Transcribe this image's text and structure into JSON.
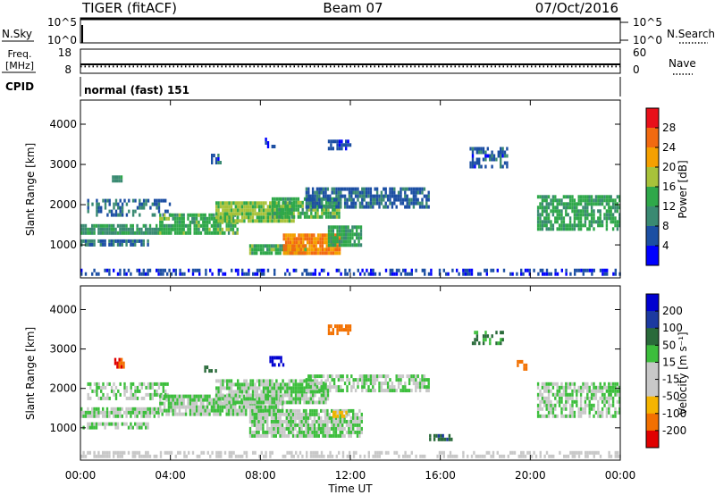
{
  "header": {
    "radar": "TIGER (fitACF)",
    "beam": "Beam 07",
    "date": "07/Oct/2016"
  },
  "status_panel": {
    "nsky_label": "N.Sky",
    "nsearch_label": "N.Search",
    "left_ticks": [
      "10^5",
      "10^0"
    ],
    "right_ticks": [
      "10^5",
      "10^0"
    ]
  },
  "freq_panel": {
    "label_line1": "Freq.",
    "label_line2": "[MHz]",
    "left_ticks": [
      "18",
      "8"
    ],
    "right_ticks": [
      "60",
      "0"
    ],
    "nave_label": "Nave",
    "freq_value_mhz": 11.5,
    "nave_value": 14
  },
  "cpid": {
    "label": "CPID",
    "value": "normal (fast) 151"
  },
  "time_axis": {
    "label": "Time UT",
    "ticks": [
      "00:00",
      "04:00",
      "08:00",
      "12:00",
      "16:00",
      "20:00",
      "00:00"
    ]
  },
  "colors": {
    "power": [
      "#0000ff",
      "#1c4fa3",
      "#3a8a72",
      "#2fa84a",
      "#a8c23a",
      "#f5a000",
      "#f26a10",
      "#e8101a"
    ],
    "velocity": [
      "#e00000",
      "#f27000",
      "#f5b400",
      "#c8c8c8",
      "#c8c8c8",
      "#3cbe3c",
      "#2a6a3a",
      "#1c3aa0",
      "#0000d0"
    ]
  },
  "chart_data": [
    {
      "type": "heatmap",
      "name": "power",
      "xlabel": "Time UT",
      "ylabel": "Slant Range [km]",
      "xlim": [
        0,
        24
      ],
      "ylim": [
        180,
        4600
      ],
      "y_ticks": [
        "1000",
        "2000",
        "3000",
        "4000"
      ],
      "colorbar": {
        "label": "Power [dB]",
        "ticks": [
          "4",
          "8",
          "12",
          "16",
          "20",
          "24",
          "28"
        ],
        "range": [
          0,
          30
        ]
      },
      "regions": [
        {
          "t0": 0.0,
          "t1": 24.0,
          "r0": 230,
          "r1": 330,
          "value": 5,
          "density": 0.5
        },
        {
          "t0": 0.0,
          "t1": 3.0,
          "r0": 960,
          "r1": 1100,
          "value": 8,
          "density": 0.8
        },
        {
          "t0": 0.0,
          "t1": 3.5,
          "r0": 1250,
          "r1": 1500,
          "value": 11,
          "density": 0.85
        },
        {
          "t0": 0.3,
          "t1": 4.0,
          "r0": 1700,
          "r1": 2100,
          "value": 8,
          "density": 0.5
        },
        {
          "t0": 3.5,
          "t1": 7.0,
          "r0": 1250,
          "r1": 1750,
          "value": 14,
          "density": 0.85
        },
        {
          "t0": 6.0,
          "t1": 9.5,
          "r0": 1550,
          "r1": 2050,
          "value": 17,
          "density": 0.9
        },
        {
          "t0": 8.5,
          "t1": 11.5,
          "r0": 1650,
          "r1": 2100,
          "value": 14,
          "density": 0.85
        },
        {
          "t0": 10.0,
          "t1": 15.5,
          "r0": 1900,
          "r1": 2350,
          "value": 7,
          "density": 0.75
        },
        {
          "t0": 7.5,
          "t1": 10.0,
          "r0": 750,
          "r1": 1000,
          "value": 14,
          "density": 0.9
        },
        {
          "t0": 9.0,
          "t1": 11.5,
          "r0": 750,
          "r1": 1250,
          "value": 24,
          "density": 0.95
        },
        {
          "t0": 11.0,
          "t1": 12.5,
          "r0": 950,
          "r1": 1400,
          "value": 13,
          "density": 0.85
        },
        {
          "t0": 11.0,
          "t1": 12.0,
          "r0": 3350,
          "r1": 3550,
          "value": 5,
          "density": 0.7
        },
        {
          "t0": 17.3,
          "t1": 19.0,
          "r0": 2900,
          "r1": 3400,
          "value": 6,
          "density": 0.5
        },
        {
          "t0": 20.3,
          "t1": 24.0,
          "r0": 1350,
          "r1": 2150,
          "value": 13,
          "density": 0.75
        },
        {
          "t0": 1.4,
          "t1": 1.8,
          "r0": 2550,
          "r1": 2700,
          "value": 10,
          "density": 0.8
        },
        {
          "t0": 5.8,
          "t1": 6.2,
          "r0": 3000,
          "r1": 3200,
          "value": 6,
          "density": 0.6
        },
        {
          "t0": 8.2,
          "t1": 8.8,
          "r0": 3400,
          "r1": 3600,
          "value": 4,
          "density": 0.5
        }
      ]
    },
    {
      "type": "heatmap",
      "name": "velocity",
      "xlabel": "Time UT",
      "ylabel": "Slant Range [km]",
      "xlim": [
        0,
        24
      ],
      "ylim": [
        180,
        4600
      ],
      "y_ticks": [
        "1000",
        "2000",
        "3000",
        "4000"
      ],
      "colorbar": {
        "label": "Velocity [m s⁻¹]",
        "ticks": [
          "200",
          "100",
          "50",
          "15",
          "-15",
          "-50",
          "-100",
          "-200"
        ],
        "range": [
          -250,
          250
        ]
      },
      "regions": [
        {
          "t0": 0.0,
          "t1": 24.0,
          "r0": 230,
          "r1": 330,
          "value": -30,
          "density": 0.5
        },
        {
          "t0": 0.0,
          "t1": 3.5,
          "r0": 1250,
          "r1": 1500,
          "value": 0,
          "density": 0.85
        },
        {
          "t0": 0.0,
          "t1": 3.0,
          "r0": 960,
          "r1": 1100,
          "value": 0,
          "density": 0.75
        },
        {
          "t0": 0.3,
          "t1": 4.0,
          "r0": 1700,
          "r1": 2150,
          "value": 0,
          "density": 0.55
        },
        {
          "t0": 3.5,
          "t1": 9.0,
          "r0": 1300,
          "r1": 1800,
          "value": 0,
          "density": 0.85
        },
        {
          "t0": 6.0,
          "t1": 11.0,
          "r0": 1600,
          "r1": 2150,
          "value": 0,
          "density": 0.85
        },
        {
          "t0": 10.0,
          "t1": 15.5,
          "r0": 1900,
          "r1": 2350,
          "value": 0,
          "density": 0.7
        },
        {
          "t0": 7.5,
          "t1": 12.5,
          "r0": 750,
          "r1": 1400,
          "value": 0,
          "density": 0.85
        },
        {
          "t0": 11.0,
          "t1": 12.0,
          "r0": 3350,
          "r1": 3550,
          "value": -120,
          "density": 0.7
        },
        {
          "t0": 1.5,
          "t1": 1.9,
          "r0": 2500,
          "r1": 2700,
          "value": -200,
          "density": 0.85
        },
        {
          "t0": 17.4,
          "t1": 18.8,
          "r0": 3100,
          "r1": 3400,
          "value": 20,
          "density": 0.45
        },
        {
          "t0": 20.3,
          "t1": 24.0,
          "r0": 1250,
          "r1": 2100,
          "value": 0,
          "density": 0.7
        },
        {
          "t0": 15.5,
          "t1": 16.5,
          "r0": 660,
          "r1": 760,
          "value": 40,
          "density": 0.8
        },
        {
          "t0": 19.4,
          "t1": 19.8,
          "r0": 2450,
          "r1": 2650,
          "value": -150,
          "density": 0.7
        },
        {
          "t0": 8.4,
          "t1": 9.0,
          "r0": 2550,
          "r1": 2750,
          "value": 200,
          "density": 0.6
        },
        {
          "t0": 5.5,
          "t1": 6.0,
          "r0": 2400,
          "r1": 2500,
          "value": 30,
          "density": 0.6
        },
        {
          "t0": 11.2,
          "t1": 11.8,
          "r0": 1250,
          "r1": 1400,
          "value": -60,
          "density": 0.7
        }
      ]
    }
  ]
}
